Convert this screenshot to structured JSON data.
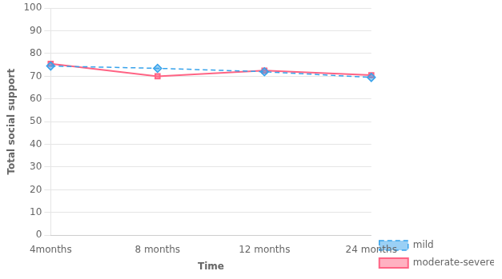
{
  "chart_data": {
    "type": "line",
    "categories": [
      "4months",
      "8 months",
      "12 months",
      "24 months"
    ],
    "series": [
      {
        "name": "mild",
        "values": [
          74.5,
          73.5,
          72.0,
          69.5
        ],
        "marker": "diamond",
        "line_style": "dashed"
      },
      {
        "name": "moderate-severe",
        "values": [
          75.5,
          70.0,
          72.5,
          70.5
        ],
        "marker": "square",
        "line_style": "solid"
      }
    ],
    "x_label": "Time",
    "y_label": "Total social support",
    "ylim": [
      0,
      100
    ],
    "yticks": [
      0,
      10,
      20,
      30,
      40,
      50,
      60,
      70,
      80,
      90,
      100
    ],
    "grid": true,
    "legend": "lower right"
  }
}
